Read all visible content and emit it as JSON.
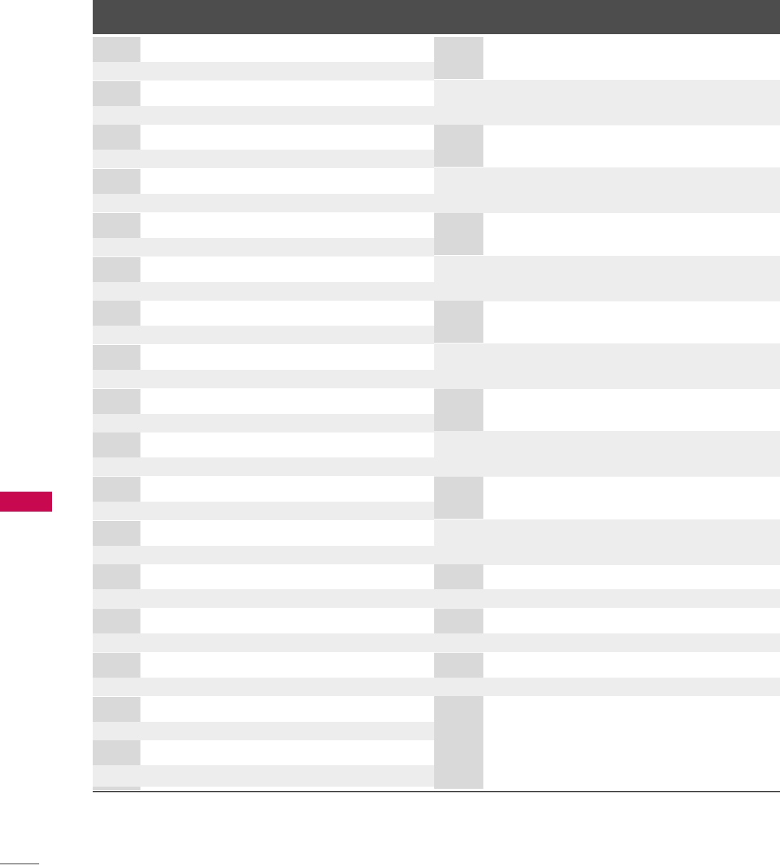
{
  "colors": {
    "header": "#4d4d4d",
    "key_cell": "#d9d9d9",
    "alt_row": "#ededed",
    "section_tab": "#c8084f",
    "rule": "#4d4d4d"
  },
  "header": {
    "title": ""
  },
  "section_tab": {
    "label": ""
  }
}
